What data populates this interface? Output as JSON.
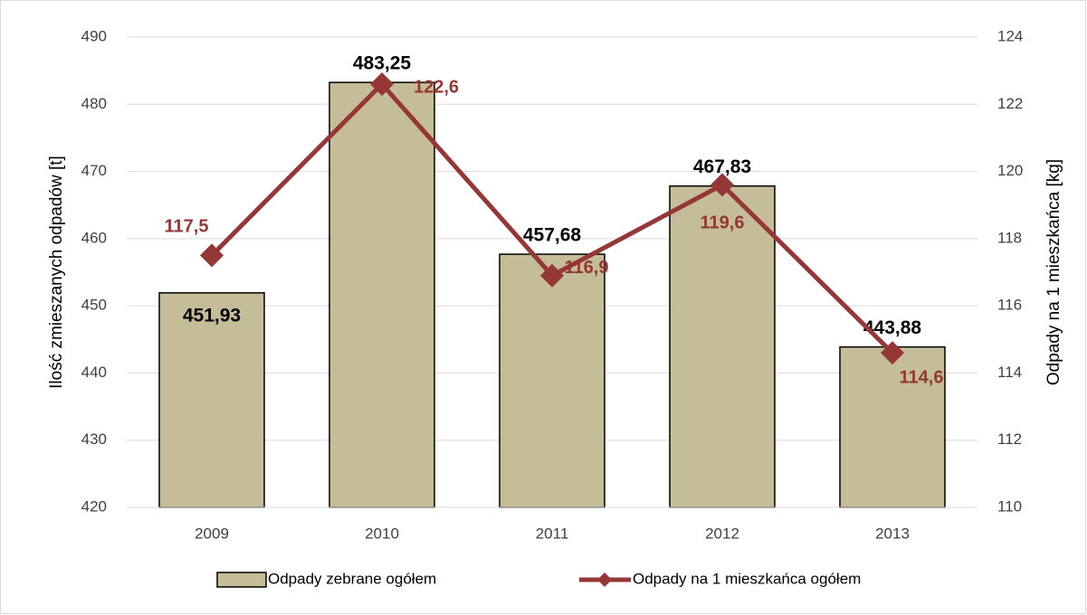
{
  "chart_data": {
    "type": "bar",
    "categories": [
      "2009",
      "2010",
      "2011",
      "2012",
      "2013"
    ],
    "y_label": "Ilość zmieszanych odpadów [t]",
    "y2_label": "Odpady na 1 mieszkańca [kg]",
    "ylim": [
      420,
      490
    ],
    "yticks": [
      420,
      430,
      440,
      450,
      460,
      470,
      480,
      490
    ],
    "y2lim": [
      110,
      124
    ],
    "y2ticks": [
      110,
      112,
      114,
      116,
      118,
      120,
      122,
      124
    ],
    "grid": true,
    "legend": "bottom",
    "series": [
      {
        "name": "Odpady zebrane ogółem",
        "type": "bar",
        "color": "#c4bd97",
        "values": [
          451.93,
          483.25,
          457.68,
          467.83,
          443.88
        ],
        "value_labels": [
          "451,93",
          "483,25",
          "457,68",
          "467,83",
          "443,88"
        ]
      },
      {
        "name": "Odpady na 1 mieszkańca ogółem",
        "type": "line",
        "axis": "y2",
        "color": "#953735",
        "values": [
          117.5,
          122.6,
          116.9,
          119.6,
          114.6
        ],
        "value_labels": [
          "117,5",
          "122,6",
          "116,9",
          "119,6",
          "114,6"
        ]
      }
    ]
  }
}
